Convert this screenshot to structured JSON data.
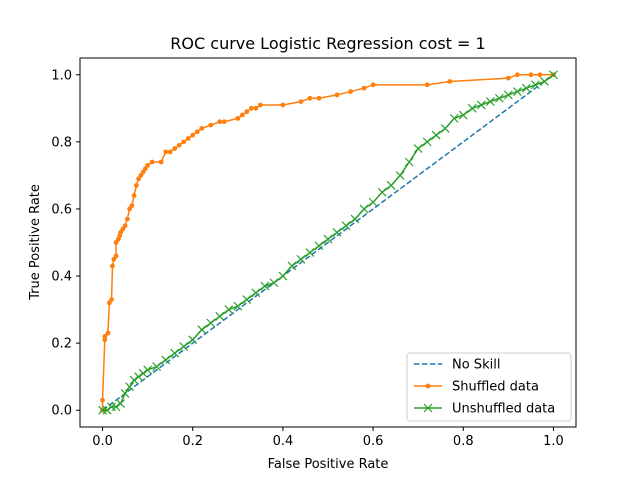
{
  "chart_data": {
    "type": "line",
    "title": "ROC curve Logistic Regression cost = 1",
    "xlabel": "False Positive Rate",
    "ylabel": "True Positive Rate",
    "xlim": [
      -0.05,
      1.05
    ],
    "ylim": [
      -0.05,
      1.05
    ],
    "xticks": [
      0.0,
      0.2,
      0.4,
      0.6,
      0.8,
      1.0
    ],
    "xtick_labels": [
      "0.0",
      "0.2",
      "0.4",
      "0.6",
      "0.8",
      "1.0"
    ],
    "yticks": [
      0.0,
      0.2,
      0.4,
      0.6,
      0.8,
      1.0
    ],
    "ytick_labels": [
      "0.0",
      "0.2",
      "0.4",
      "0.6",
      "0.8",
      "1.0"
    ],
    "grid": false,
    "legend_position": "lower-right",
    "series": [
      {
        "name": "No Skill",
        "color": "#1f77b4",
        "linestyle": "dashed",
        "marker": "none",
        "x": [
          0.0,
          1.0
        ],
        "y": [
          0.0,
          1.0
        ]
      },
      {
        "name": "Shuffled data",
        "color": "#ff7f0e",
        "linestyle": "solid",
        "marker": "dot",
        "x": [
          0.0,
          0.0,
          0.005,
          0.005,
          0.012,
          0.015,
          0.02,
          0.022,
          0.025,
          0.03,
          0.03,
          0.035,
          0.038,
          0.04,
          0.045,
          0.05,
          0.055,
          0.06,
          0.065,
          0.07,
          0.075,
          0.08,
          0.085,
          0.09,
          0.095,
          0.1,
          0.11,
          0.13,
          0.14,
          0.15,
          0.16,
          0.17,
          0.18,
          0.19,
          0.2,
          0.21,
          0.22,
          0.24,
          0.26,
          0.27,
          0.3,
          0.31,
          0.32,
          0.33,
          0.34,
          0.35,
          0.4,
          0.44,
          0.46,
          0.48,
          0.52,
          0.55,
          0.58,
          0.6,
          0.72,
          0.77,
          0.9,
          0.92,
          0.95,
          0.97,
          1.0
        ],
        "y": [
          0.0,
          0.03,
          0.21,
          0.22,
          0.23,
          0.32,
          0.33,
          0.43,
          0.45,
          0.46,
          0.5,
          0.51,
          0.52,
          0.53,
          0.54,
          0.55,
          0.57,
          0.6,
          0.61,
          0.64,
          0.67,
          0.69,
          0.7,
          0.71,
          0.72,
          0.73,
          0.74,
          0.74,
          0.77,
          0.77,
          0.78,
          0.79,
          0.8,
          0.81,
          0.82,
          0.83,
          0.84,
          0.85,
          0.86,
          0.86,
          0.87,
          0.88,
          0.89,
          0.9,
          0.9,
          0.91,
          0.91,
          0.92,
          0.93,
          0.93,
          0.94,
          0.95,
          0.96,
          0.97,
          0.97,
          0.98,
          0.99,
          1.0,
          1.0,
          1.0,
          1.0
        ]
      },
      {
        "name": "Unshuffled data",
        "color": "#2ca02c",
        "linestyle": "solid",
        "marker": "x",
        "x": [
          0.0,
          0.01,
          0.02,
          0.03,
          0.04,
          0.05,
          0.06,
          0.07,
          0.08,
          0.09,
          0.1,
          0.12,
          0.14,
          0.16,
          0.18,
          0.2,
          0.22,
          0.24,
          0.26,
          0.28,
          0.3,
          0.32,
          0.34,
          0.36,
          0.38,
          0.4,
          0.42,
          0.44,
          0.46,
          0.48,
          0.5,
          0.52,
          0.54,
          0.56,
          0.58,
          0.6,
          0.62,
          0.64,
          0.66,
          0.68,
          0.7,
          0.72,
          0.74,
          0.76,
          0.78,
          0.8,
          0.82,
          0.84,
          0.86,
          0.88,
          0.9,
          0.92,
          0.94,
          0.96,
          0.98,
          1.0
        ],
        "y": [
          0.0,
          0.0,
          0.01,
          0.01,
          0.02,
          0.05,
          0.07,
          0.09,
          0.1,
          0.11,
          0.12,
          0.13,
          0.15,
          0.17,
          0.19,
          0.21,
          0.24,
          0.26,
          0.28,
          0.3,
          0.31,
          0.33,
          0.35,
          0.37,
          0.38,
          0.4,
          0.43,
          0.45,
          0.47,
          0.49,
          0.51,
          0.53,
          0.55,
          0.57,
          0.6,
          0.62,
          0.65,
          0.67,
          0.7,
          0.74,
          0.78,
          0.8,
          0.82,
          0.84,
          0.87,
          0.88,
          0.9,
          0.91,
          0.92,
          0.93,
          0.94,
          0.95,
          0.96,
          0.97,
          0.98,
          1.0
        ]
      }
    ]
  }
}
